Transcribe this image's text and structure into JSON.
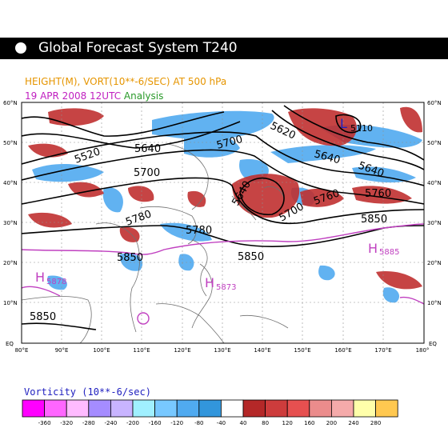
{
  "header": {
    "title": "Global Forecast System T240",
    "subtitle_line1": "HEIGHT(M), VORT(10**-6/SEC) AT 500 hPa",
    "subtitle_date": "19 APR 2008 12UTC",
    "subtitle_analysis": "Analysis"
  },
  "map": {
    "lat_labels": [
      "60°N",
      "50°N",
      "40°N",
      "30°N",
      "20°N",
      "10°N",
      "EQ"
    ],
    "lon_labels": [
      "80°E",
      "90°E",
      "100°E",
      "110°E",
      "120°E",
      "130°E",
      "140°E",
      "150°E",
      "160°E",
      "170°E",
      "180°"
    ],
    "contour_labels": [
      "5520",
      "5640",
      "5700",
      "5620",
      "5700",
      "5640",
      "5640",
      "5640",
      "5700",
      "5760",
      "5760",
      "5780",
      "5850",
      "5850",
      "5850",
      "5850",
      "5780",
      "5110",
      "5850"
    ],
    "pressure_centers": [
      {
        "letter": "H",
        "value": "5878"
      },
      {
        "letter": "H",
        "value": "5873"
      },
      {
        "letter": "H",
        "value": "5885"
      },
      {
        "letter": "L",
        "value": "5110"
      }
    ],
    "colors": {
      "contour": "#000000",
      "isoline_5880": "#c040c0",
      "coast": "#707070",
      "grid": "#909090"
    }
  },
  "legend": {
    "title": "Vorticity (10**-6/sec)",
    "ticks": [
      "-360",
      "-320",
      "-280",
      "-240",
      "-200",
      "-160",
      "-120",
      "-80",
      "-40",
      "40",
      "80",
      "120",
      "160",
      "200",
      "240",
      "280"
    ],
    "colors": [
      "#ff00ff",
      "#ff66ff",
      "#ffbbff",
      "#a58cff",
      "#c8b4ff",
      "#a0f0ff",
      "#78c8ff",
      "#50aaf0",
      "#3296dc",
      "#ffffff",
      "#b42828",
      "#cd3c3c",
      "#e65050",
      "#eb8c8c",
      "#f5aaaa",
      "#ffffaa",
      "#ffc850"
    ]
  }
}
